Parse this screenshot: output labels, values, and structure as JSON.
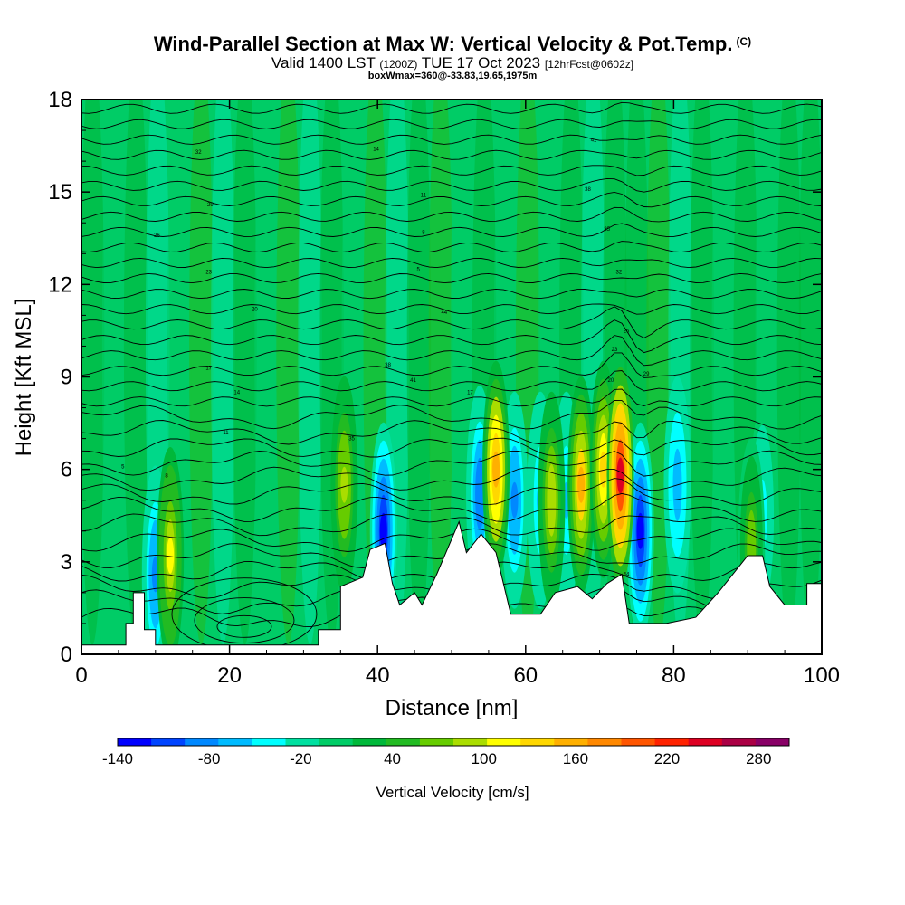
{
  "header": {
    "title": "Wind-Parallel Section at Max W: Vertical Velocity & Pot.Temp.",
    "title_tag": "(C)",
    "subtitle_main": "Valid 1400 LST",
    "subtitle_utc": "(1200Z)",
    "subtitle_date": "TUE 17 Oct 2023",
    "subtitle_fcst": "[12hrFcst@0602z]",
    "subnote": "boxWmax=360@-33.83,19.65,1975m"
  },
  "chart_data": {
    "type": "heatmap",
    "xlabel": "Distance [nm]",
    "ylabel": "Height [Kft MSL]",
    "xlim": [
      0,
      100
    ],
    "ylim": [
      0,
      18
    ],
    "x_ticks": [
      "0",
      "20",
      "40",
      "60",
      "80",
      "100"
    ],
    "y_ticks": [
      "0",
      "3",
      "6",
      "9",
      "12",
      "15",
      "18"
    ],
    "colorbar": {
      "label": "Vertical Velocity [cm/s]",
      "tick_labels": [
        "-140",
        "-80",
        "-20",
        "40",
        "100",
        "160",
        "220",
        "280"
      ],
      "tick_values": [
        -140,
        -80,
        -20,
        40,
        100,
        160,
        220,
        280
      ],
      "range": [
        -140,
        300
      ],
      "colors": [
        "#0000ff",
        "#0044ff",
        "#0088ff",
        "#00bbff",
        "#00ffff",
        "#00e0a0",
        "#00cc66",
        "#00b83a",
        "#22bb22",
        "#66cc00",
        "#aadd00",
        "#ffff00",
        "#ffd700",
        "#ffb000",
        "#ff8800",
        "#ff5500",
        "#ff2200",
        "#dd0022",
        "#aa0044",
        "#880066"
      ]
    },
    "terrain_kft": [
      [
        0,
        0.3
      ],
      [
        6,
        0.3
      ],
      [
        6,
        1.0
      ],
      [
        7,
        1.0
      ],
      [
        7,
        2.0
      ],
      [
        8.5,
        2.0
      ],
      [
        8.5,
        0.8
      ],
      [
        10,
        0.8
      ],
      [
        10,
        0.3
      ],
      [
        32,
        0.3
      ],
      [
        32,
        0.8
      ],
      [
        35,
        0.8
      ],
      [
        35,
        2.2
      ],
      [
        38,
        2.5
      ],
      [
        39,
        3.4
      ],
      [
        41,
        3.6
      ],
      [
        42,
        2.3
      ],
      [
        43,
        1.6
      ],
      [
        45,
        2.0
      ],
      [
        46,
        1.6
      ],
      [
        48,
        2.6
      ],
      [
        51,
        4.3
      ],
      [
        52,
        3.3
      ],
      [
        54,
        3.9
      ],
      [
        56,
        3.3
      ],
      [
        58,
        1.3
      ],
      [
        62,
        1.3
      ],
      [
        64,
        2.0
      ],
      [
        67,
        2.2
      ],
      [
        69,
        1.8
      ],
      [
        71,
        2.3
      ],
      [
        73,
        2.6
      ],
      [
        74,
        1.0
      ],
      [
        75,
        1.0
      ],
      [
        79,
        1.0
      ],
      [
        83,
        1.2
      ],
      [
        86,
        2.0
      ],
      [
        90,
        3.2
      ],
      [
        92,
        3.2
      ],
      [
        93,
        2.2
      ],
      [
        95,
        1.6
      ],
      [
        98,
        1.6
      ],
      [
        98,
        2.3
      ],
      [
        100,
        2.3
      ]
    ],
    "updrafts": [
      {
        "x": 12.0,
        "z": 3.2,
        "w": 110
      },
      {
        "x": 35.5,
        "z": 5.5,
        "w": 95
      },
      {
        "x": 56.0,
        "z": 6.0,
        "w": 160
      },
      {
        "x": 63.5,
        "z": 5.0,
        "w": 100
      },
      {
        "x": 67.5,
        "z": 5.5,
        "w": 150
      },
      {
        "x": 70.5,
        "z": 6.0,
        "w": 130
      },
      {
        "x": 72.8,
        "z": 5.8,
        "w": 250
      },
      {
        "x": 90.5,
        "z": 3.5,
        "w": 70
      }
    ],
    "downdrafts": [
      {
        "x": 10.0,
        "z": 2.6,
        "w": -80
      },
      {
        "x": 40.8,
        "z": 4.0,
        "w": -120
      },
      {
        "x": 53.8,
        "z": 5.2,
        "w": -90
      },
      {
        "x": 58.5,
        "z": 5.0,
        "w": -80
      },
      {
        "x": 62.0,
        "z": 5.0,
        "w": -60
      },
      {
        "x": 65.5,
        "z": 5.0,
        "w": -60
      },
      {
        "x": 75.5,
        "z": 4.0,
        "w": -140
      },
      {
        "x": 80.5,
        "z": 5.5,
        "w": -70
      },
      {
        "x": 92.0,
        "z": 4.5,
        "w": -40
      }
    ],
    "isentrope_labels": [
      "5",
      "8",
      "11",
      "14",
      "17",
      "20",
      "23",
      "26",
      "29",
      "32",
      "35",
      "38",
      "41",
      "44"
    ]
  }
}
